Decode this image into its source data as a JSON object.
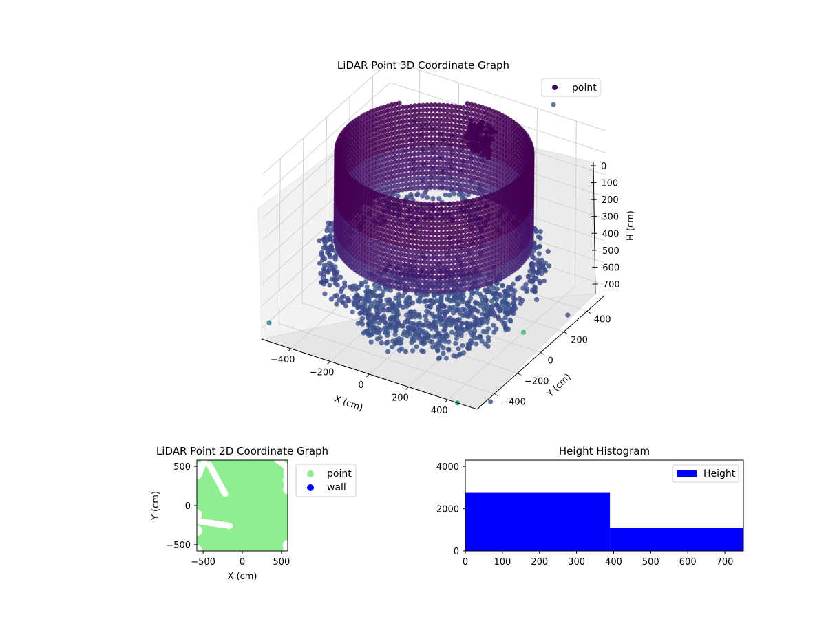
{
  "chart_data": [
    {
      "type": "scatter",
      "projection": "3d",
      "title": "LiDAR Point 3D Coordinate Graph",
      "xlabel": "X (cm)",
      "ylabel": "Y (cm)",
      "zlabel": "H (cm)",
      "x_ticks": [
        "−400",
        "−200",
        "0",
        "200",
        "400"
      ],
      "y_ticks": [
        "−400",
        "−200",
        "0",
        "200",
        "400"
      ],
      "z_ticks": [
        "0",
        "100",
        "200",
        "300",
        "400",
        "500",
        "600",
        "700"
      ],
      "xlim": [
        -550,
        550
      ],
      "ylim": [
        -550,
        550
      ],
      "zlim": [
        0,
        750
      ],
      "z_axis_inverted": true,
      "colormap": "viridis",
      "legend": {
        "entries": [
          {
            "label": "point",
            "color": "#440154"
          }
        ],
        "placement": "top-right"
      },
      "structures": [
        {
          "kind": "ring_wall",
          "center": [
            0,
            0
          ],
          "radius": 430,
          "h_range": [
            0,
            400
          ],
          "color": "#471468"
        },
        {
          "kind": "lower_ring",
          "center": [
            0,
            0
          ],
          "radius": 470,
          "h_range": [
            420,
            560
          ],
          "color": "#3e4a89"
        },
        {
          "kind": "floor_disc",
          "center": [
            50,
            -80
          ],
          "radius": 360,
          "h_range": [
            600,
            700
          ],
          "color": "#3b528b"
        },
        {
          "kind": "inner_pillars",
          "x_range": [
            -200,
            150
          ],
          "y": 150,
          "h_range": [
            0,
            500
          ],
          "color": "#433e85"
        }
      ],
      "outliers": [
        {
          "x": -520,
          "y": 460,
          "h": 0,
          "color": "#472d7b"
        },
        {
          "x": 300,
          "y": 520,
          "h": -60,
          "color": "#31688e"
        },
        {
          "x": 520,
          "y": -100,
          "h": 620,
          "color": "#35b779"
        },
        {
          "x": 560,
          "y": -450,
          "h": 760,
          "color": "#3b528b"
        },
        {
          "x": -600,
          "y": -400,
          "h": 760,
          "color": "#2a788e"
        },
        {
          "x": 540,
          "y": 250,
          "h": 700,
          "color": "#3e4a89"
        },
        {
          "x": 450,
          "y": -550,
          "h": 750,
          "color": "#1f9e89"
        }
      ]
    },
    {
      "type": "scatter",
      "title": "LiDAR Point 2D Coordinate Graph",
      "xlabel": "X (cm)",
      "ylabel": "Y (cm)",
      "xlim": [
        -580,
        580
      ],
      "ylim": [
        -580,
        580
      ],
      "x_ticks": [
        -500,
        0,
        500
      ],
      "y_ticks": [
        -500,
        0,
        500
      ],
      "series": [
        {
          "name": "point",
          "color": "#90ee90",
          "extent": {
            "x": [
              -560,
              560
            ],
            "y": [
              -560,
              560
            ]
          },
          "density": "dense",
          "gaps": [
            {
              "from": [
                -420,
                520
              ],
              "to": [
                -220,
                150
              ]
            },
            {
              "from": [
                -560,
                -200
              ],
              "to": [
                -160,
                -260
              ]
            },
            {
              "from": [
                -560,
                380
              ],
              "to": [
                -480,
                580
              ]
            },
            {
              "from": [
                450,
                580
              ],
              "to": [
                560,
                500
              ]
            }
          ]
        },
        {
          "name": "wall",
          "color": "#0000ff",
          "points": []
        }
      ],
      "legend": {
        "placement": "outside-right"
      }
    },
    {
      "type": "bar",
      "title": "Height Histogram",
      "xlim": [
        0,
        750
      ],
      "ylim": [
        0,
        4300
      ],
      "x_ticks": [
        0,
        100,
        200,
        300,
        400,
        500,
        600,
        700
      ],
      "y_ticks": [
        0,
        2000,
        4000
      ],
      "bins": [
        {
          "from": 0,
          "to": 390,
          "count": 2750
        },
        {
          "from": 390,
          "to": 750,
          "count": 1100
        }
      ],
      "series": [
        {
          "name": "Height",
          "color": "#0000ff"
        }
      ],
      "legend": {
        "placement": "top-right"
      }
    }
  ]
}
